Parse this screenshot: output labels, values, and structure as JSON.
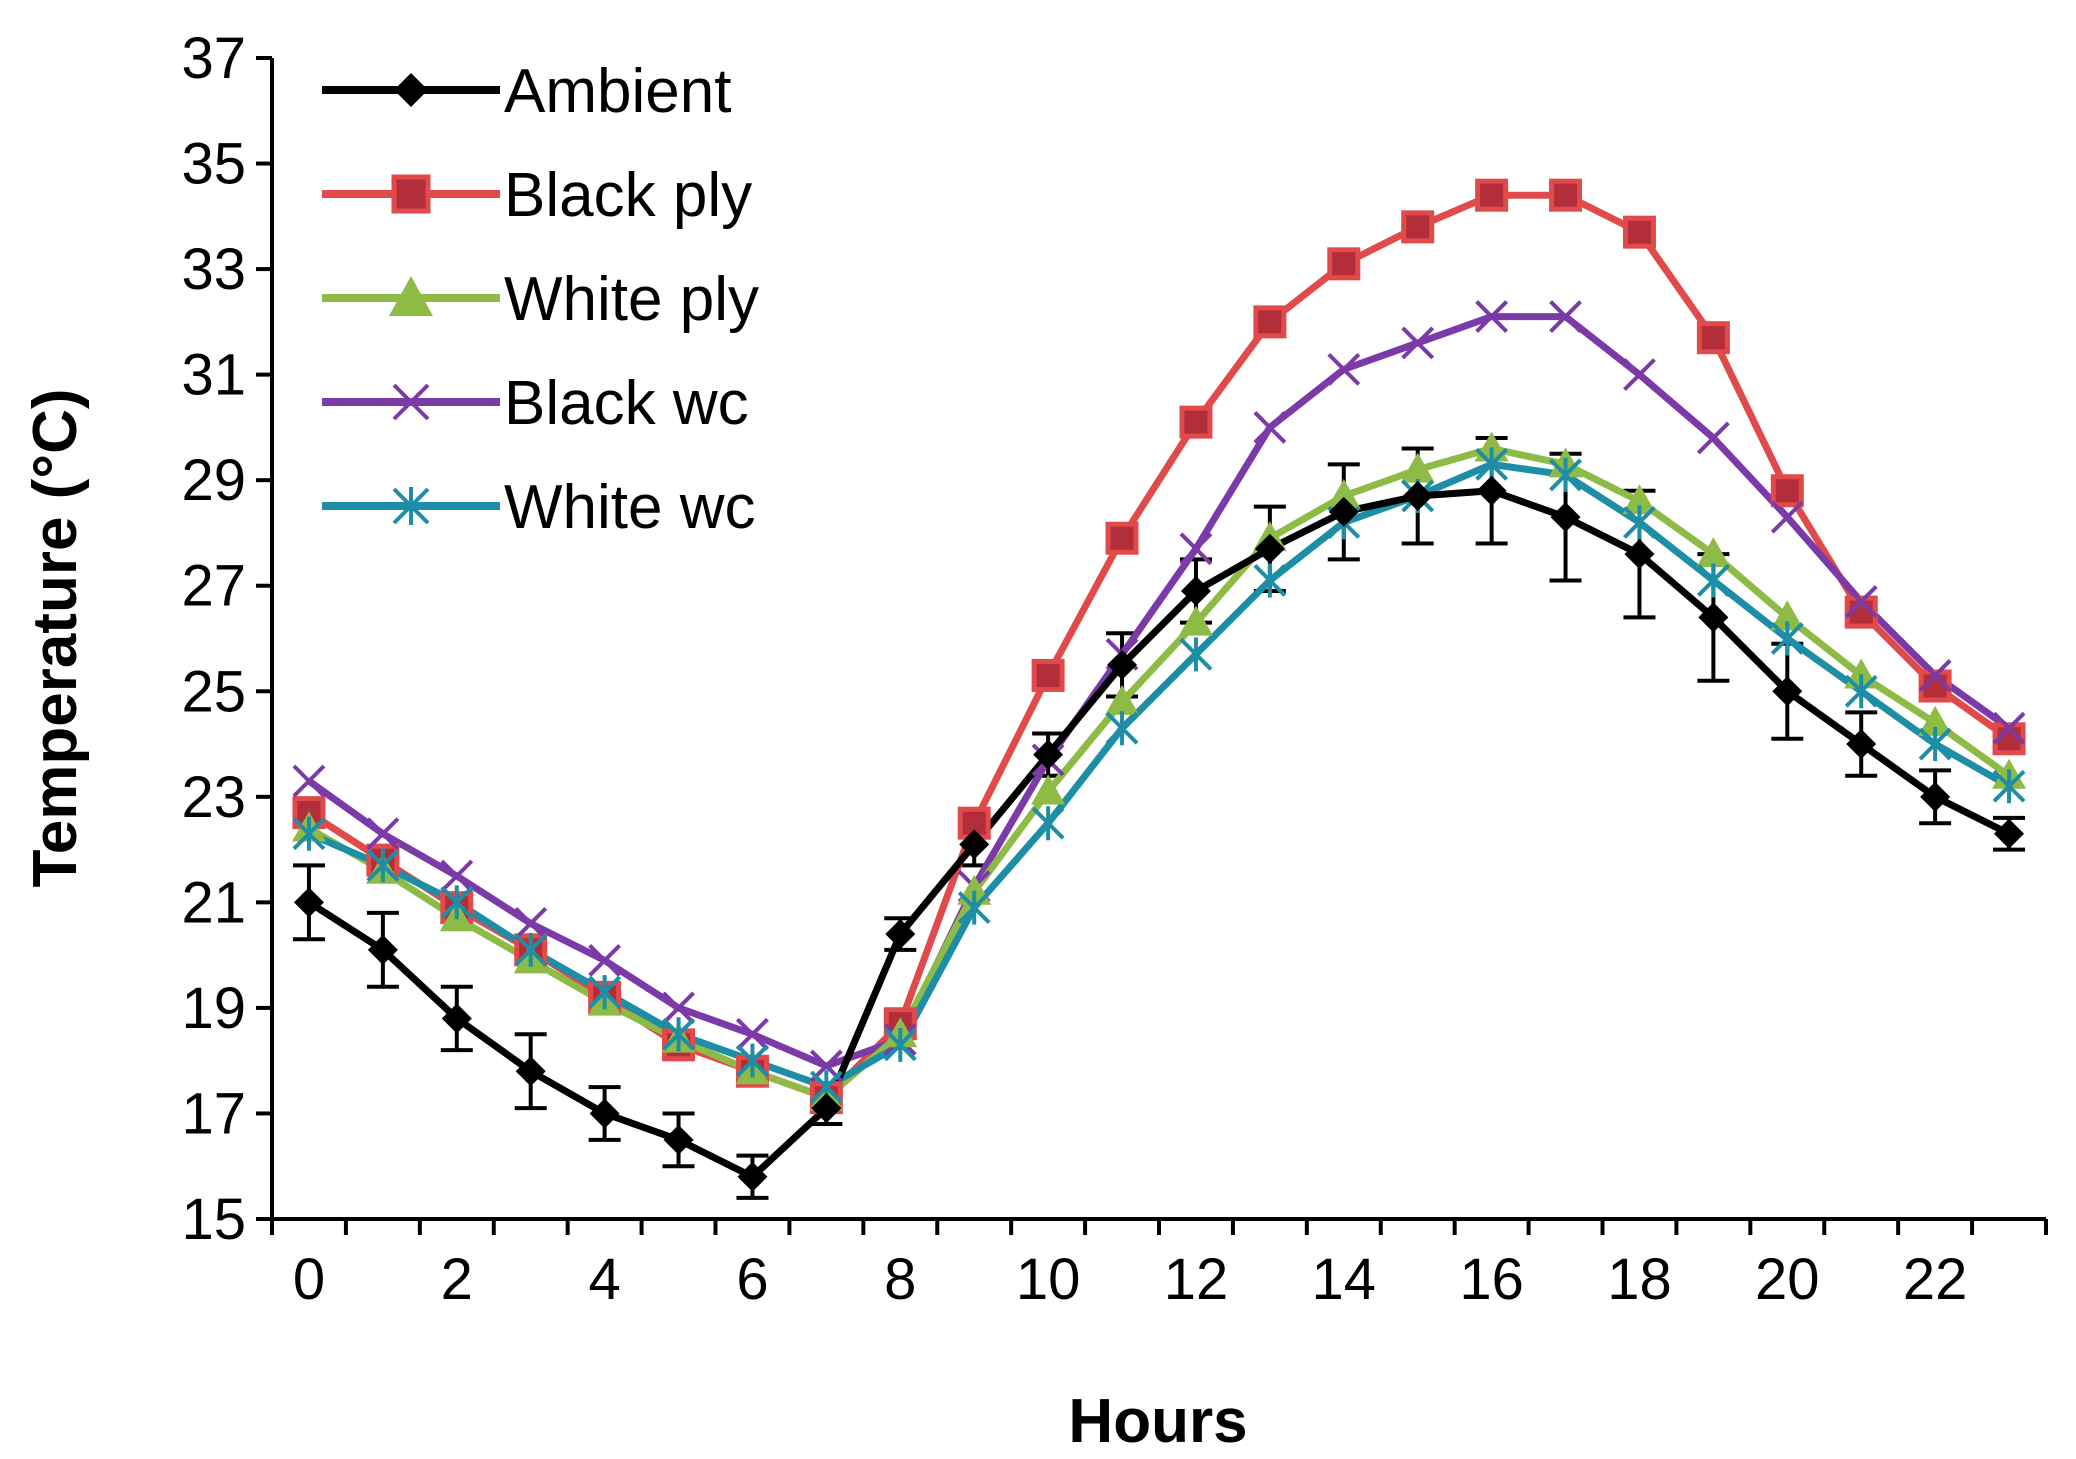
{
  "chart_data": {
    "type": "line",
    "title": "",
    "xlabel": "Hours",
    "ylabel": "Temperature (°C)",
    "ylim": [
      15,
      37
    ],
    "yticks": [
      15,
      17,
      19,
      21,
      23,
      25,
      27,
      29,
      31,
      33,
      35,
      37
    ],
    "xlim": [
      -0.5,
      23.5
    ],
    "xticks": [
      0,
      2,
      4,
      6,
      8,
      10,
      12,
      14,
      16,
      18,
      20,
      22
    ],
    "x": [
      0,
      1,
      2,
      3,
      4,
      5,
      6,
      7,
      8,
      9,
      10,
      11,
      12,
      13,
      14,
      15,
      16,
      17,
      18,
      19,
      20,
      21,
      22,
      23
    ],
    "legend_position": "top-left",
    "series": [
      {
        "name": "Ambient",
        "color": "#000000",
        "marker": "diamond",
        "values": [
          21.0,
          20.1,
          18.8,
          17.8,
          17.0,
          16.5,
          15.8,
          17.1,
          20.4,
          22.1,
          23.8,
          25.5,
          26.9,
          27.7,
          28.4,
          28.7,
          28.8,
          28.3,
          27.6,
          26.4,
          25.0,
          24.0,
          23.0,
          22.3
        ],
        "errors": [
          0.7,
          0.7,
          0.6,
          0.7,
          0.5,
          0.5,
          0.4,
          0.3,
          0.3,
          0.4,
          0.4,
          0.6,
          0.6,
          0.8,
          0.9,
          0.9,
          1.0,
          1.2,
          1.2,
          1.2,
          0.9,
          0.6,
          0.5,
          0.3
        ]
      },
      {
        "name": "Black ply",
        "color": "#E04A4A",
        "marker": "square",
        "values": [
          22.7,
          21.8,
          20.9,
          20.1,
          19.2,
          18.3,
          17.8,
          17.3,
          18.7,
          22.5,
          25.3,
          27.9,
          30.1,
          32.0,
          33.1,
          33.8,
          34.4,
          34.4,
          33.7,
          31.7,
          28.8,
          26.5,
          25.1,
          24.1
        ]
      },
      {
        "name": "White ply",
        "color": "#8DBB45",
        "marker": "triangle",
        "values": [
          22.4,
          21.6,
          20.7,
          19.9,
          19.1,
          18.4,
          17.8,
          17.3,
          18.5,
          21.2,
          23.1,
          24.8,
          26.3,
          27.9,
          28.7,
          29.2,
          29.6,
          29.3,
          28.6,
          27.6,
          26.4,
          25.3,
          24.4,
          23.4
        ]
      },
      {
        "name": "Black wc",
        "color": "#7B3AA8",
        "marker": "x",
        "values": [
          23.3,
          22.3,
          21.5,
          20.6,
          19.9,
          19.0,
          18.5,
          17.9,
          18.4,
          21.3,
          23.7,
          25.7,
          27.7,
          30.0,
          31.1,
          31.6,
          32.1,
          32.1,
          31.0,
          29.8,
          28.3,
          26.7,
          25.3,
          24.3
        ]
      },
      {
        "name": "White wc",
        "color": "#1E8EA6",
        "marker": "asterisk",
        "values": [
          22.3,
          21.7,
          21.0,
          20.1,
          19.3,
          18.5,
          18.0,
          17.5,
          18.3,
          20.9,
          22.5,
          24.3,
          25.7,
          27.1,
          28.2,
          28.7,
          29.3,
          29.1,
          28.2,
          27.1,
          26.0,
          25.0,
          24.0,
          23.2
        ]
      }
    ]
  }
}
